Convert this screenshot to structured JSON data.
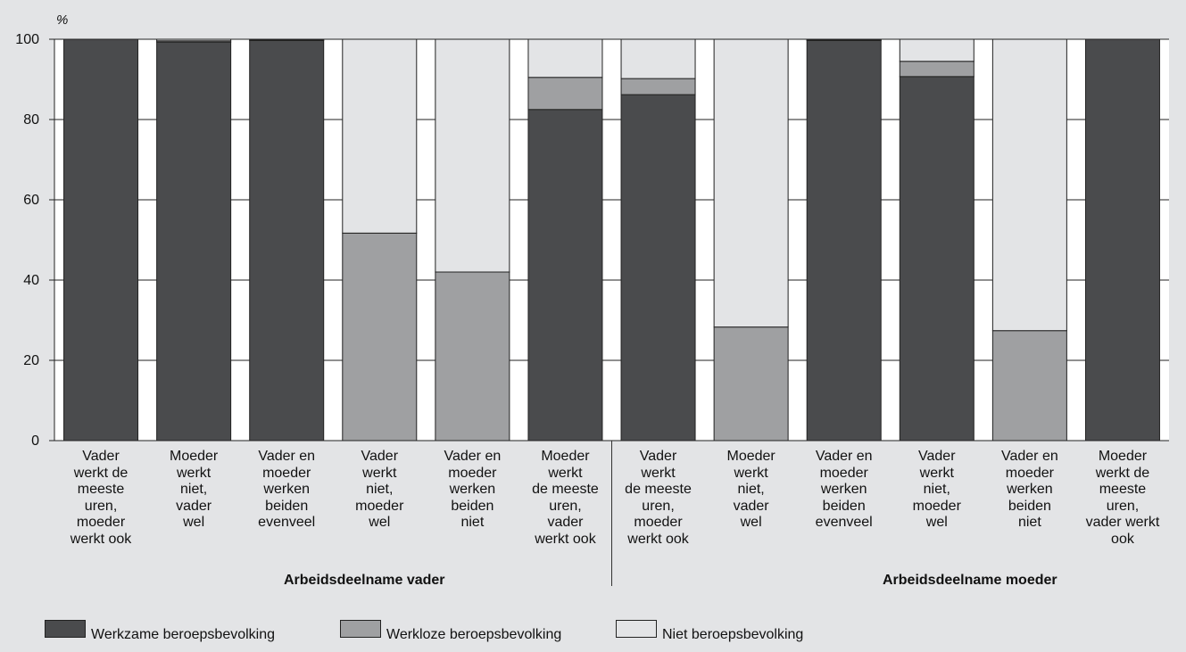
{
  "chart_data": {
    "type": "bar",
    "stacked": true,
    "y_unit_label": "%",
    "ylim": [
      0,
      100
    ],
    "yticks": [
      "0",
      "20",
      "40",
      "60",
      "80",
      "100"
    ],
    "categories": [
      [
        "Vader",
        "werkt de",
        "meeste",
        "uren,",
        "moeder",
        "werkt ook"
      ],
      [
        "Moeder",
        "werkt",
        "niet,",
        "vader",
        "wel"
      ],
      [
        "Vader en",
        "moeder",
        "werken",
        "beiden",
        "evenveel"
      ],
      [
        "Vader",
        "werkt",
        "niet,",
        "moeder",
        "wel"
      ],
      [
        "Vader en",
        "moeder",
        "werken",
        "beiden",
        "niet"
      ],
      [
        "Moeder",
        "werkt",
        "de meeste",
        "uren,",
        "vader",
        "werkt ook"
      ],
      [
        "Vader",
        "werkt",
        "de meeste",
        "uren,",
        "moeder",
        "werkt ook"
      ],
      [
        "Moeder",
        "werkt",
        "niet,",
        "vader",
        "wel"
      ],
      [
        "Vader en",
        "moeder",
        "werken",
        "beiden",
        "evenveel"
      ],
      [
        "Vader",
        "werkt",
        "niet,",
        "moeder",
        "wel"
      ],
      [
        "Vader en",
        "moeder",
        "werken",
        "beiden",
        "niet"
      ],
      [
        "Moeder",
        "werkt de",
        "meeste",
        "uren,",
        "vader werkt",
        "ook"
      ]
    ],
    "groups": [
      {
        "label": "Arbeidsdeelname vader",
        "from": 0,
        "to": 5
      },
      {
        "label": "Arbeidsdeelname moeder",
        "from": 6,
        "to": 11
      }
    ],
    "series": [
      {
        "name": "Werkzame beroepsbevolking",
        "color": "#4a4b4d",
        "values": [
          100,
          99.3,
          99.7,
          0,
          0,
          82.5,
          86.2,
          0,
          99.7,
          90.7,
          0,
          100
        ]
      },
      {
        "name": "Werkloze beroepsbevolking",
        "color": "#9fa0a2",
        "values": [
          0,
          0.3,
          0.1,
          51.7,
          42,
          8,
          4,
          28.3,
          0.1,
          3.8,
          27.4,
          0
        ]
      },
      {
        "name": "Niet beroepsbevolking",
        "color": "#e3e4e6",
        "values": [
          0,
          0.4,
          0.2,
          48.3,
          58,
          9.5,
          9.8,
          71.7,
          0.2,
          5.5,
          72.6,
          0
        ]
      }
    ],
    "grid": true,
    "legend_position": "bottom"
  },
  "legend": [
    {
      "label": "Werkzame beroepsbevolking",
      "color": "#4a4b4d"
    },
    {
      "label": "Werkloze beroepsbevolking",
      "color": "#9fa0a2"
    },
    {
      "label": "Niet beroepsbevolking",
      "color": "#e3e4e6"
    }
  ]
}
